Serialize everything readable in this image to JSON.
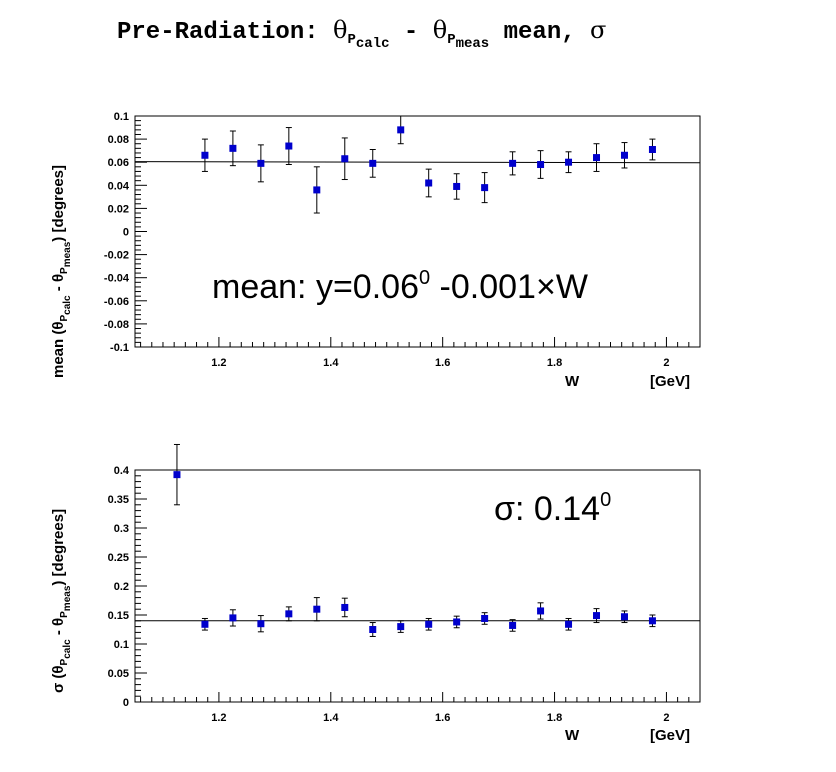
{
  "title": {
    "prefix": "Pre-Radiation: ",
    "theta": "θ",
    "p": "P",
    "calc": "calc",
    "minus": " - ",
    "meas": "meas",
    "suffix": " mean, ",
    "sigma": "σ"
  },
  "colors": {
    "marker": "#0000cc",
    "line": "#000000",
    "frame": "#000000"
  },
  "chart_data": [
    {
      "type": "scatter",
      "name": "mean",
      "xlabel": "W",
      "xunit": "[GeV]",
      "ylabel_parts": {
        "prefix": "mean (θ",
        "p": "P",
        "calc": "calc",
        "minus": " - θ",
        "p2": "P",
        "meas": "meas",
        "suffix": ")   [degrees]"
      },
      "xlim": [
        1.05,
        2.06
      ],
      "ylim": [
        -0.1,
        0.1
      ],
      "xticks": [
        "1.2",
        "1.4",
        "1.6",
        "1.8",
        "2"
      ],
      "xtick_values": [
        1.2,
        1.4,
        1.6,
        1.8,
        2.0
      ],
      "yticks": [
        "-0.1",
        "-0.08",
        "-0.06",
        "-0.04",
        "-0.02",
        "0",
        "0.02",
        "0.04",
        "0.06",
        "0.08",
        "0.1"
      ],
      "ytick_values": [
        -0.1,
        -0.08,
        -0.06,
        -0.04,
        -0.02,
        0,
        0.02,
        0.04,
        0.06,
        0.08,
        0.1
      ],
      "x": [
        1.175,
        1.225,
        1.275,
        1.325,
        1.375,
        1.425,
        1.475,
        1.525,
        1.575,
        1.625,
        1.675,
        1.725,
        1.775,
        1.825,
        1.875,
        1.925,
        1.975
      ],
      "y": [
        0.066,
        0.072,
        0.059,
        0.074,
        0.036,
        0.063,
        0.059,
        0.088,
        0.042,
        0.039,
        0.038,
        0.059,
        0.058,
        0.06,
        0.064,
        0.066,
        0.071
      ],
      "yerr": [
        0.014,
        0.015,
        0.016,
        0.016,
        0.02,
        0.018,
        0.012,
        0.012,
        0.012,
        0.011,
        0.013,
        0.01,
        0.012,
        0.009,
        0.012,
        0.011,
        0.009
      ],
      "fit": {
        "x": [
          1.05,
          2.06
        ],
        "y": [
          0.0605,
          0.0595
        ]
      },
      "annotation": {
        "text": "mean: y=0.06",
        "sup": "0",
        "tail": " -0.001×W"
      }
    },
    {
      "type": "scatter",
      "name": "sigma",
      "xlabel": "W",
      "xunit": "[GeV]",
      "ylabel_parts": {
        "prefix": "σ (θ",
        "p": "P",
        "calc": "calc",
        "minus": " - θ",
        "p2": "P",
        "meas": "meas",
        "suffix": ")   [degrees]"
      },
      "xlim": [
        1.05,
        2.06
      ],
      "ylim": [
        0,
        0.4
      ],
      "xticks": [
        "1.2",
        "1.4",
        "1.6",
        "1.8",
        "2"
      ],
      "xtick_values": [
        1.2,
        1.4,
        1.6,
        1.8,
        2.0
      ],
      "yticks": [
        "0",
        "0.05",
        "0.1",
        "0.15",
        "0.2",
        "0.25",
        "0.3",
        "0.35",
        "0.4"
      ],
      "ytick_values": [
        0,
        0.05,
        0.1,
        0.15,
        0.2,
        0.25,
        0.3,
        0.35,
        0.4
      ],
      "x": [
        1.125,
        1.175,
        1.225,
        1.275,
        1.325,
        1.375,
        1.425,
        1.475,
        1.525,
        1.575,
        1.625,
        1.675,
        1.725,
        1.775,
        1.825,
        1.875,
        1.925,
        1.975
      ],
      "y": [
        0.392,
        0.134,
        0.145,
        0.135,
        0.152,
        0.16,
        0.163,
        0.125,
        0.13,
        0.134,
        0.138,
        0.144,
        0.132,
        0.157,
        0.134,
        0.149,
        0.147,
        0.14
      ],
      "yerr": [
        0.052,
        0.01,
        0.014,
        0.014,
        0.012,
        0.02,
        0.016,
        0.012,
        0.01,
        0.01,
        0.01,
        0.01,
        0.01,
        0.014,
        0.01,
        0.012,
        0.01,
        0.01
      ],
      "fit": {
        "x": [
          1.05,
          2.06
        ],
        "y": [
          0.14,
          0.14
        ]
      },
      "annotation": {
        "text": "σ: 0.14",
        "sup": "0",
        "tail": ""
      }
    }
  ]
}
